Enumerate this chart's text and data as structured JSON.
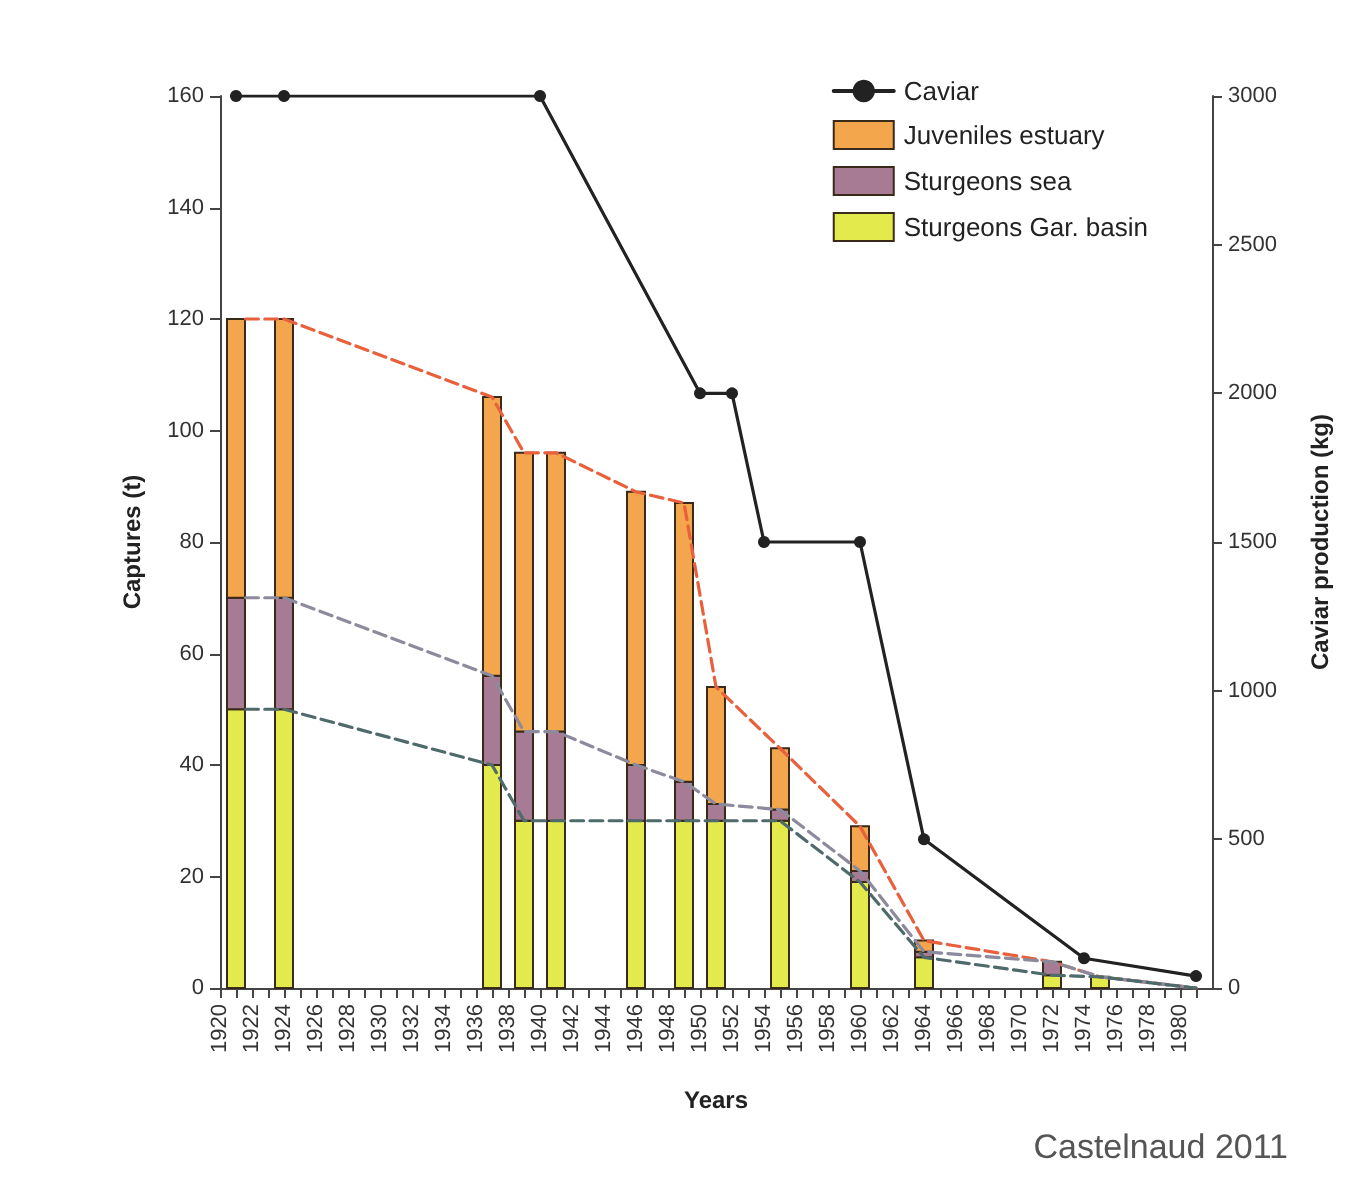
{
  "chart_data": {
    "type": "bar",
    "xlabel": "Years",
    "ylabel": "Captures (t)",
    "y2label": "Caviar production (kg)",
    "stacked": true,
    "legend": "top right",
    "grid": false,
    "xlim": [
      1920,
      1982
    ],
    "xticks": [
      1920,
      {
        "value": 1921,
        "label": null
      },
      1922,
      {
        "value": 1923,
        "label": null
      },
      1924,
      {
        "value": 1925,
        "label": null
      },
      1926,
      {
        "value": 1927,
        "label": null
      },
      1928,
      {
        "value": 1929,
        "label": null
      },
      1930,
      {
        "value": 1931,
        "label": null
      },
      1932,
      {
        "value": 1933,
        "label": null
      },
      1934,
      {
        "value": 1935,
        "label": null
      },
      1936,
      {
        "value": 1937,
        "label": null
      },
      1938,
      {
        "value": 1939,
        "label": null
      },
      1940,
      {
        "value": 1941,
        "label": null
      },
      1942,
      {
        "value": 1943,
        "label": null
      },
      1944,
      {
        "value": 1945,
        "label": null
      },
      1946,
      {
        "value": 1947,
        "label": null
      },
      1948,
      {
        "value": 1949,
        "label": null
      },
      1950,
      {
        "value": 1951,
        "label": null
      },
      1952,
      {
        "value": 1953,
        "label": null
      },
      1954,
      {
        "value": 1955,
        "label": null
      },
      1956,
      {
        "value": 1957,
        "label": null
      },
      1958,
      {
        "value": 1959,
        "label": null
      },
      1960,
      {
        "value": 1961,
        "label": null
      },
      1962,
      {
        "value": 1963,
        "label": null
      },
      1964,
      {
        "value": 1965,
        "label": null
      },
      1966,
      {
        "value": 1967,
        "label": null
      },
      1968,
      {
        "value": 1969,
        "label": null
      },
      1970,
      {
        "value": 1971,
        "label": null
      },
      1972,
      {
        "value": 1973,
        "label": null
      },
      1974,
      {
        "value": 1975,
        "label": null
      },
      1976,
      {
        "value": 1977,
        "label": null
      },
      1978,
      {
        "value": 1979,
        "label": null
      },
      1980,
      {
        "value": 1981,
        "label": null
      }
    ],
    "ylim": [
      0,
      160
    ],
    "yticks": [
      0,
      20,
      40,
      60,
      80,
      100,
      120,
      140,
      160
    ],
    "y2lim": [
      0,
      3000
    ],
    "y2ticks": [
      0,
      500,
      1000,
      1500,
      2000,
      2500,
      3000
    ],
    "annotations": [
      "Castelnaud 2011"
    ],
    "series": [
      {
        "name": "Caviar",
        "type": "line",
        "axis": "y2",
        "color": "#222222",
        "marker": "circle",
        "line_style": "solid",
        "x": [
          1921,
          1924,
          1940,
          1950,
          1952,
          1954,
          1960,
          1964,
          1974,
          1981
        ],
        "values": [
          3000,
          3000,
          3000,
          2000,
          2000,
          1500,
          1500,
          500,
          100,
          40
        ]
      },
      {
        "name": "Sturgeons Gar. basin",
        "color": "#e3ea4c",
        "x": [
          1921,
          1924,
          1937,
          1939,
          1941,
          1946,
          1949,
          1951,
          1955,
          1960,
          1964,
          1972,
          1975
        ],
        "values": [
          50,
          50,
          40,
          30,
          30,
          30,
          30,
          30,
          30,
          19,
          5.5,
          2.3,
          2
        ]
      },
      {
        "name": "Sturgeons sea",
        "color": "#a87b94",
        "x": [
          1921,
          1924,
          1937,
          1939,
          1941,
          1946,
          1949,
          1951,
          1955,
          1960,
          1964,
          1972,
          1975
        ],
        "values": [
          20,
          20,
          16,
          16,
          16,
          10,
          7,
          3,
          2,
          2,
          1,
          2.4,
          0
        ]
      },
      {
        "name": "Juveniles estuary",
        "color": "#f4a64c",
        "x": [
          1921,
          1924,
          1937,
          1939,
          1941,
          1946,
          1949,
          1951,
          1955,
          1960,
          1964,
          1972,
          1975
        ],
        "values": [
          50,
          50,
          50,
          50,
          50,
          49,
          50,
          21,
          11,
          8,
          2,
          0,
          0
        ]
      },
      {
        "type": "line",
        "color": "#e8603c",
        "marker": "none",
        "line_style": "dashed",
        "x": [
          1921.6,
          1924,
          1937,
          1939,
          1941,
          1946,
          1949,
          1951,
          1955,
          1960,
          1964,
          1972,
          1975,
          1981
        ],
        "values": [
          120,
          120,
          106,
          96,
          96,
          89,
          87,
          54,
          43,
          29,
          8.5,
          4.7,
          2,
          0
        ]
      },
      {
        "type": "line",
        "color": "#8c8a9c",
        "marker": "none",
        "line_style": "dashed",
        "x": [
          1921.6,
          1924,
          1937,
          1939,
          1941,
          1946,
          1949,
          1951,
          1955,
          1960,
          1964,
          1972,
          1975,
          1981
        ],
        "values": [
          70,
          70,
          56,
          46,
          46,
          40,
          37,
          33,
          32,
          21,
          6.5,
          4.7,
          2,
          0
        ]
      },
      {
        "type": "line",
        "color": "#4e6a6a",
        "marker": "none",
        "line_style": "dashed",
        "x": [
          1921.6,
          1924,
          1937,
          1939,
          1941,
          1946,
          1949,
          1951,
          1955,
          1960,
          1964,
          1972,
          1975,
          1981
        ],
        "values": [
          50,
          50,
          40,
          30,
          30,
          30,
          30,
          30,
          30,
          19,
          5.5,
          2.3,
          2,
          0
        ]
      }
    ]
  }
}
